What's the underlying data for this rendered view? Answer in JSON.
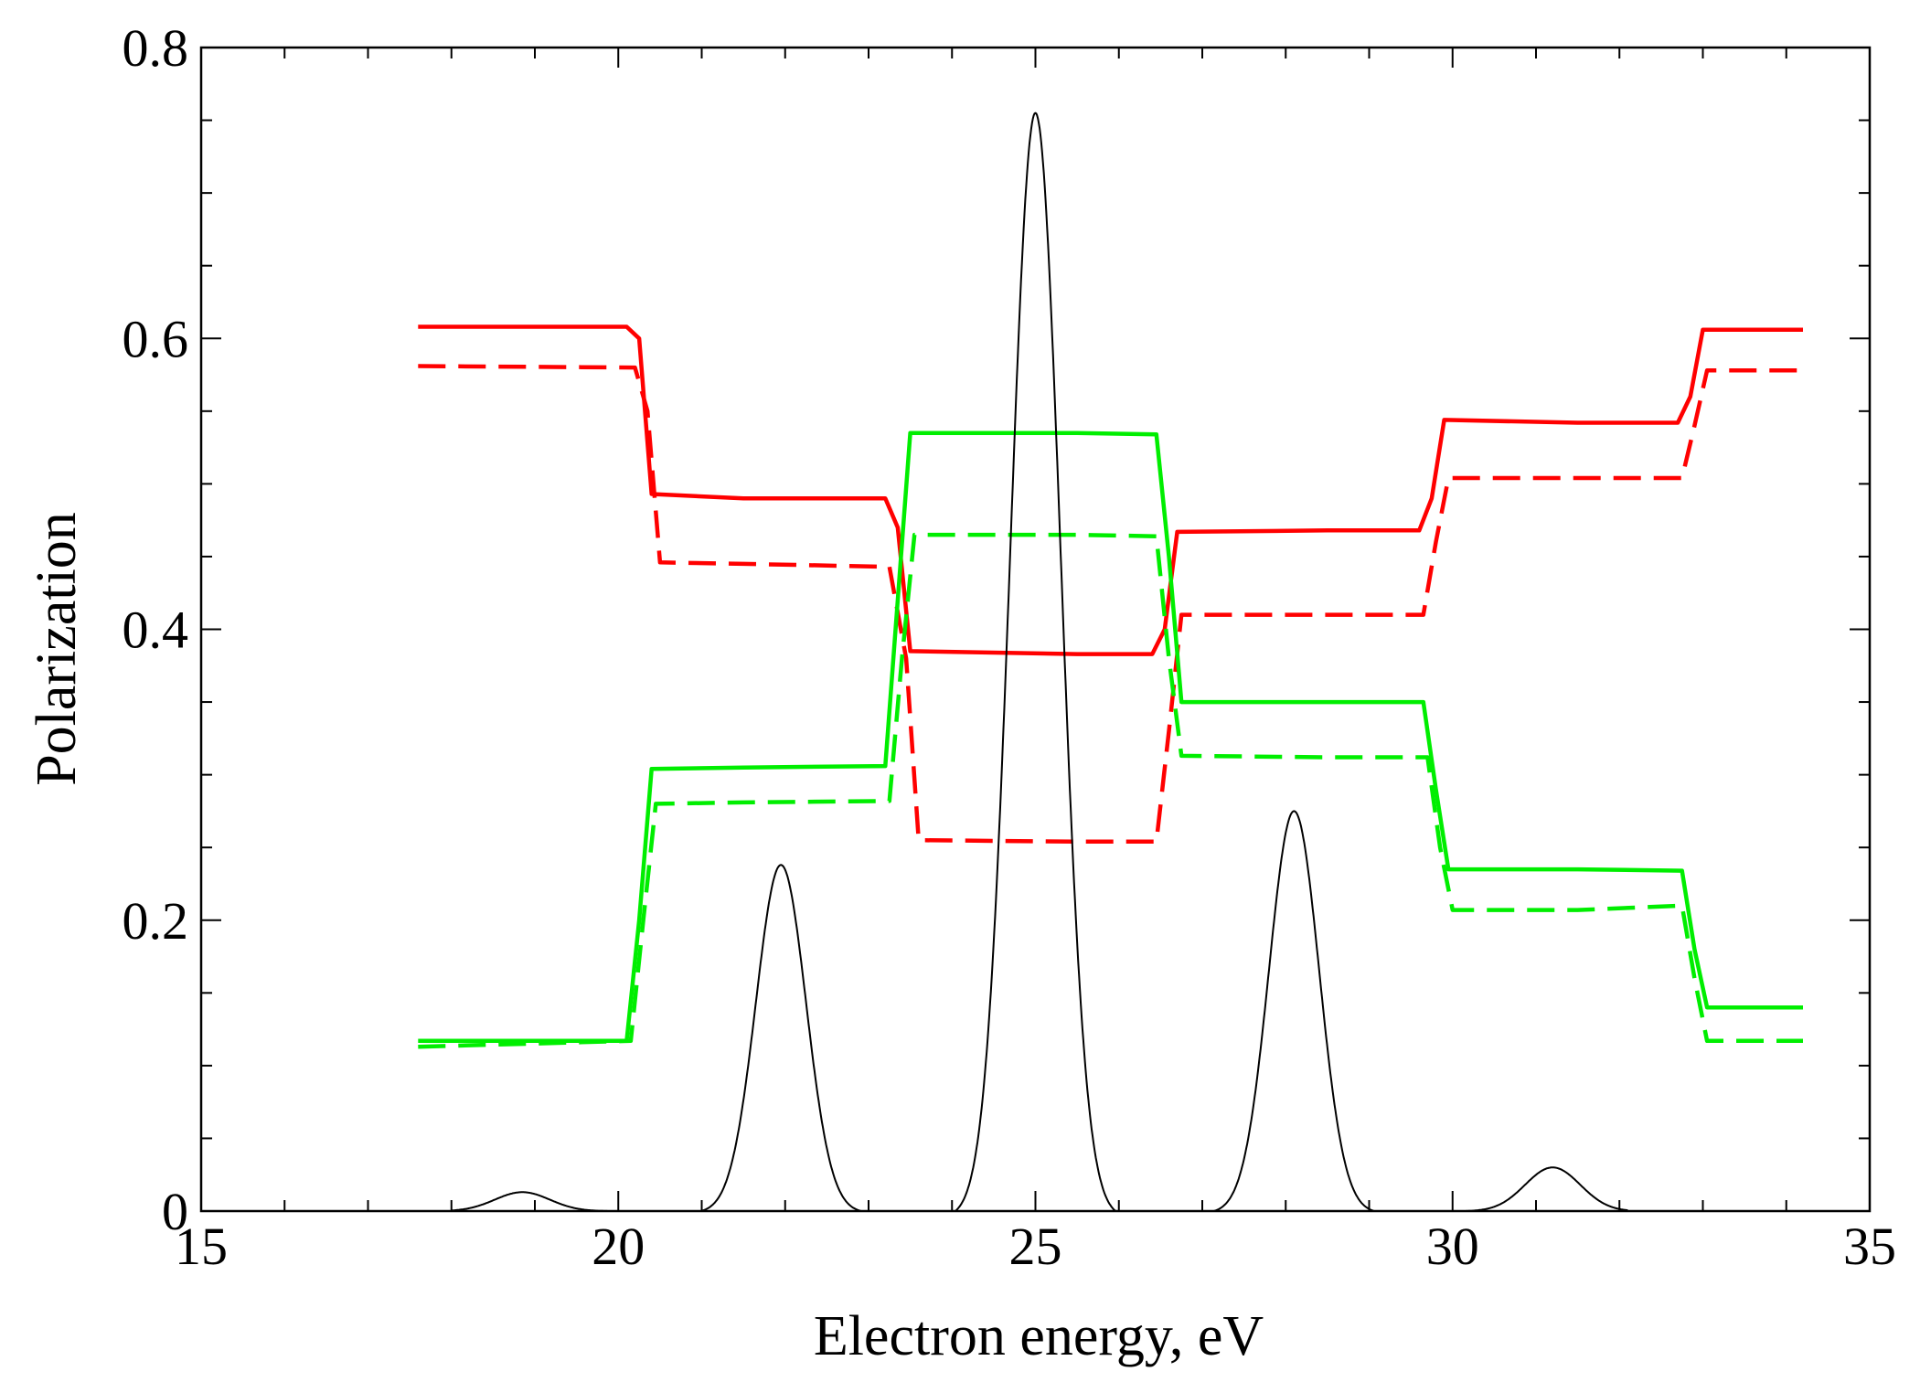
{
  "chart_data": {
    "type": "line",
    "title": "",
    "xlabel": "Electron energy, eV",
    "ylabel": "Polarization",
    "xlim": [
      15,
      35
    ],
    "ylim": [
      0,
      0.8
    ],
    "x_ticks": [
      15,
      20,
      25,
      30,
      35
    ],
    "x_tick_labels": [
      "15",
      "20",
      "25",
      "30",
      "35"
    ],
    "y_ticks": [
      0,
      0.2,
      0.4,
      0.6,
      0.8
    ],
    "y_tick_labels": [
      "0",
      "0.2",
      "0.4",
      "0.6",
      "0.8"
    ],
    "x_minor_step": 1,
    "y_minor_step": 0.05,
    "grid": false,
    "legend": "none",
    "series": [
      {
        "color": "#ff0000",
        "style": "solid",
        "points": [
          [
            17.6,
            0.608
          ],
          [
            20.1,
            0.608
          ],
          [
            20.25,
            0.6
          ],
          [
            20.4,
            0.493
          ],
          [
            21.5,
            0.49
          ],
          [
            23.2,
            0.49
          ],
          [
            23.35,
            0.47
          ],
          [
            23.5,
            0.385
          ],
          [
            25.5,
            0.383
          ],
          [
            26.4,
            0.383
          ],
          [
            26.55,
            0.4
          ],
          [
            26.7,
            0.467
          ],
          [
            28.5,
            0.468
          ],
          [
            29.6,
            0.468
          ],
          [
            29.75,
            0.49
          ],
          [
            29.9,
            0.544
          ],
          [
            31.5,
            0.542
          ],
          [
            32.7,
            0.542
          ],
          [
            32.85,
            0.56
          ],
          [
            33.0,
            0.606
          ],
          [
            34.2,
            0.606
          ]
        ]
      },
      {
        "color": "#ff0000",
        "style": "dashed",
        "points": [
          [
            17.6,
            0.581
          ],
          [
            20.2,
            0.58
          ],
          [
            20.35,
            0.55
          ],
          [
            20.5,
            0.446
          ],
          [
            21.5,
            0.445
          ],
          [
            23.25,
            0.443
          ],
          [
            23.45,
            0.38
          ],
          [
            23.6,
            0.255
          ],
          [
            25.5,
            0.254
          ],
          [
            26.45,
            0.254
          ],
          [
            26.6,
            0.33
          ],
          [
            26.75,
            0.41
          ],
          [
            28.5,
            0.41
          ],
          [
            29.65,
            0.41
          ],
          [
            29.8,
            0.46
          ],
          [
            29.95,
            0.504
          ],
          [
            31.5,
            0.504
          ],
          [
            32.75,
            0.504
          ],
          [
            32.9,
            0.54
          ],
          [
            33.05,
            0.578
          ],
          [
            34.2,
            0.578
          ]
        ]
      },
      {
        "color": "#00ee00",
        "style": "solid",
        "points": [
          [
            17.6,
            0.117
          ],
          [
            20.1,
            0.117
          ],
          [
            20.25,
            0.2
          ],
          [
            20.4,
            0.304
          ],
          [
            21.5,
            0.305
          ],
          [
            23.2,
            0.306
          ],
          [
            23.35,
            0.42
          ],
          [
            23.5,
            0.535
          ],
          [
            25.5,
            0.535
          ],
          [
            26.45,
            0.534
          ],
          [
            26.6,
            0.45
          ],
          [
            26.75,
            0.35
          ],
          [
            28.5,
            0.35
          ],
          [
            29.65,
            0.35
          ],
          [
            29.8,
            0.29
          ],
          [
            29.95,
            0.235
          ],
          [
            31.5,
            0.235
          ],
          [
            32.75,
            0.234
          ],
          [
            32.9,
            0.18
          ],
          [
            33.05,
            0.14
          ],
          [
            34.2,
            0.14
          ]
        ]
      },
      {
        "color": "#00ee00",
        "style": "dashed",
        "points": [
          [
            17.6,
            0.113
          ],
          [
            20.15,
            0.117
          ],
          [
            20.3,
            0.2
          ],
          [
            20.45,
            0.28
          ],
          [
            21.5,
            0.281
          ],
          [
            23.25,
            0.282
          ],
          [
            23.4,
            0.38
          ],
          [
            23.55,
            0.465
          ],
          [
            25.5,
            0.465
          ],
          [
            26.45,
            0.464
          ],
          [
            26.6,
            0.38
          ],
          [
            26.75,
            0.313
          ],
          [
            28.5,
            0.312
          ],
          [
            29.7,
            0.312
          ],
          [
            29.85,
            0.25
          ],
          [
            30.0,
            0.207
          ],
          [
            31.5,
            0.207
          ],
          [
            32.75,
            0.21
          ],
          [
            32.9,
            0.16
          ],
          [
            33.05,
            0.117
          ],
          [
            34.2,
            0.117
          ]
        ]
      },
      {
        "color": "#000000",
        "style": "thin",
        "peaks": [
          {
            "center": 18.85,
            "height": 0.013,
            "sigma": 0.33
          },
          {
            "center": 21.95,
            "height": 0.238,
            "sigma": 0.3
          },
          {
            "center": 25.0,
            "height": 0.755,
            "sigma": 0.3
          },
          {
            "center": 28.1,
            "height": 0.275,
            "sigma": 0.3
          },
          {
            "center": 31.2,
            "height": 0.03,
            "sigma": 0.33
          }
        ],
        "x_range": [
          18.0,
          32.1
        ]
      }
    ]
  }
}
